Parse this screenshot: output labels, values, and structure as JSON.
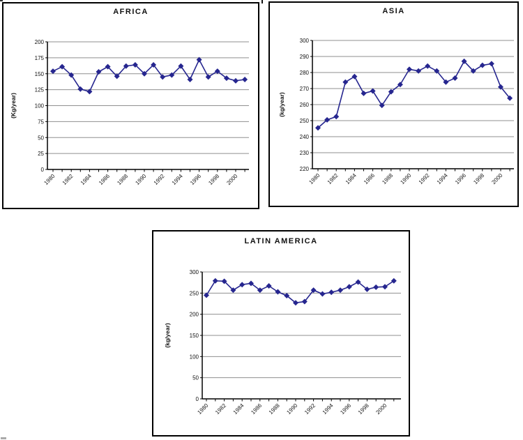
{
  "page": {
    "background": "#ffffff"
  },
  "colors": {
    "series": "#26268F",
    "gridline": "#8F8F8F",
    "axis": "#000000",
    "chart_border": "#000000",
    "text": "#111111"
  },
  "chart_data": [
    {
      "id": "africa",
      "type": "line",
      "title": "AFRICA",
      "ylabel": "(Kg/year)",
      "xlabel": "",
      "ylim": [
        0,
        200
      ],
      "ystep": 25,
      "grid": true,
      "legend": false,
      "marker": "diamond",
      "x": [
        1980,
        1981,
        1982,
        1983,
        1984,
        1985,
        1986,
        1987,
        1988,
        1989,
        1990,
        1991,
        1992,
        1993,
        1994,
        1995,
        1996,
        1997,
        1998,
        1999,
        2000,
        2001
      ],
      "xtick_labels": [
        "1980",
        "1982",
        "1984",
        "1986",
        "1988",
        "1990",
        "1992",
        "1994",
        "1996",
        "1998",
        "2000"
      ],
      "values": [
        154,
        161,
        148,
        126,
        122,
        153,
        161,
        146,
        162,
        164,
        150,
        164,
        145,
        148,
        162,
        141,
        172,
        145,
        154,
        143,
        139,
        141
      ]
    },
    {
      "id": "asia",
      "type": "line",
      "title": "ASIA",
      "ylabel": "(kg/year)",
      "xlabel": "",
      "ylim": [
        220,
        300
      ],
      "ystep": 10,
      "grid": true,
      "legend": false,
      "marker": "diamond",
      "x": [
        1980,
        1981,
        1982,
        1983,
        1984,
        1985,
        1986,
        1987,
        1988,
        1989,
        1990,
        1991,
        1992,
        1993,
        1994,
        1995,
        1996,
        1997,
        1998,
        1999,
        2000,
        2001
      ],
      "xtick_labels": [
        "1980",
        "1982",
        "1984",
        "1986",
        "1988",
        "1990",
        "1992",
        "1994",
        "1996",
        "1998",
        "2000"
      ],
      "values": [
        245.5,
        250.5,
        252.5,
        274,
        277.5,
        267,
        268.5,
        259.5,
        268,
        272.5,
        282,
        281,
        284,
        281,
        274,
        276.5,
        287,
        281,
        284.5,
        285.5,
        271,
        264
      ]
    },
    {
      "id": "latam",
      "type": "line",
      "title": "LATIN AMERICA",
      "ylabel": "(kg/year)",
      "xlabel": "",
      "ylim": [
        0,
        300
      ],
      "ystep": 50,
      "grid": true,
      "legend": false,
      "marker": "diamond",
      "x": [
        1980,
        1981,
        1982,
        1983,
        1984,
        1985,
        1986,
        1987,
        1988,
        1989,
        1990,
        1991,
        1992,
        1993,
        1994,
        1995,
        1996,
        1997,
        1998,
        1999,
        2000,
        2001
      ],
      "xtick_labels": [
        "1980",
        "1982",
        "1984",
        "1986",
        "1988",
        "1990",
        "1992",
        "1994",
        "1996",
        "1998",
        "2000"
      ],
      "values": [
        245,
        279,
        278,
        257,
        270,
        273,
        257,
        267,
        253,
        244,
        227,
        230,
        257,
        248,
        252,
        257,
        265,
        276,
        259,
        264,
        265,
        279
      ]
    }
  ]
}
